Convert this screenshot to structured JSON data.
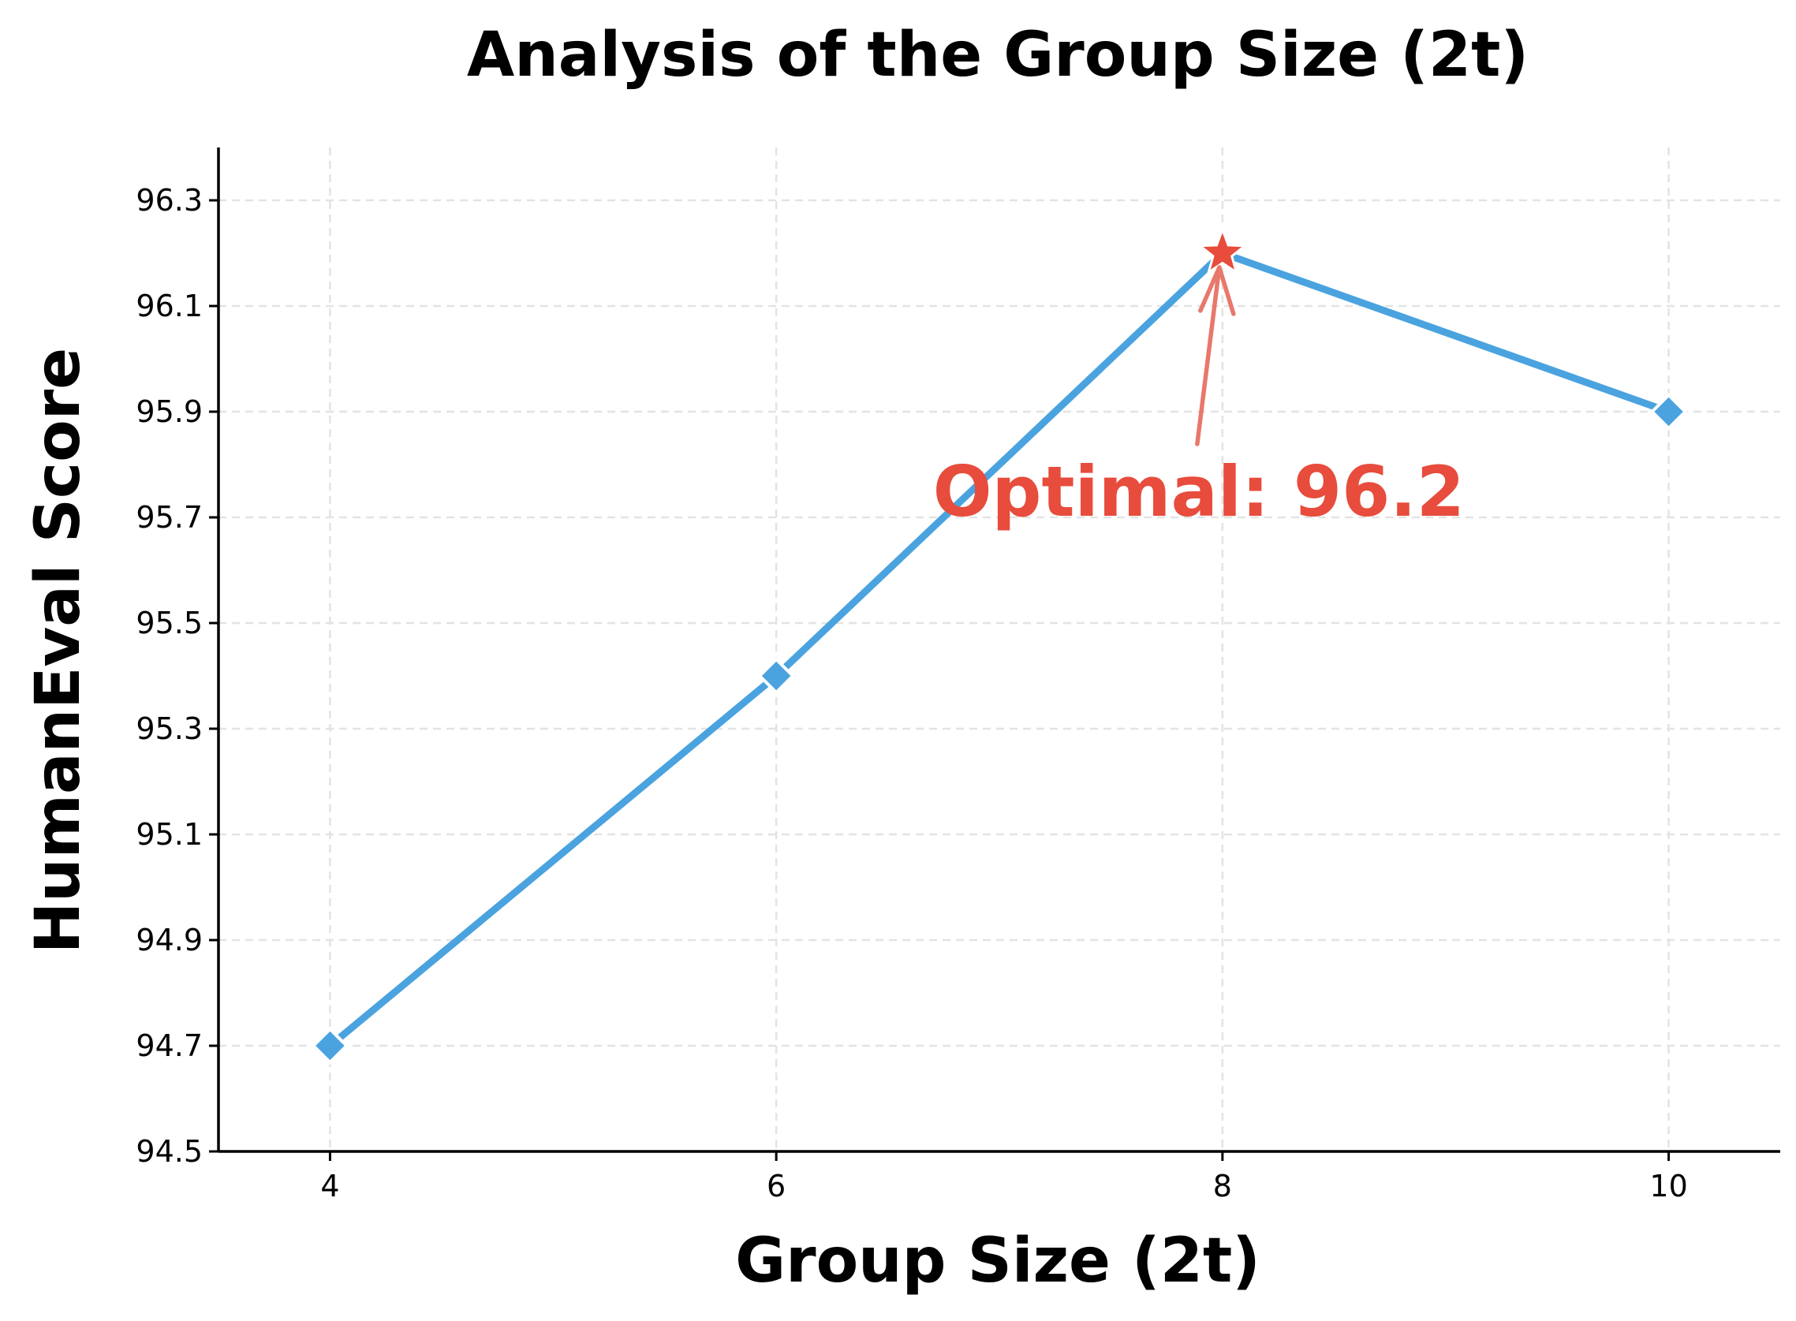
{
  "chart_data": {
    "type": "line",
    "title": "Analysis of the Group Size (2t)",
    "xlabel": "Group Size (2t)",
    "ylabel": "HumanEval Score",
    "x": [
      4,
      6,
      8,
      10
    ],
    "series": [
      {
        "values": [
          94.7,
          95.4,
          96.2,
          95.9
        ],
        "color": "#4aa3df",
        "marker": "diamond"
      }
    ],
    "xticks": [
      "4",
      "6",
      "8",
      "10"
    ],
    "yticks": [
      "94.5",
      "94.7",
      "94.9",
      "95.1",
      "95.3",
      "95.5",
      "95.7",
      "95.9",
      "96.1",
      "96.3"
    ],
    "xlim": [
      3.5,
      10.5
    ],
    "ylim": [
      94.5,
      96.4
    ],
    "grid": true,
    "highlight": {
      "x": 8,
      "y": 96.2,
      "marker": "star",
      "color": "#e74c3c",
      "label": "Optimal: 96.2"
    }
  }
}
